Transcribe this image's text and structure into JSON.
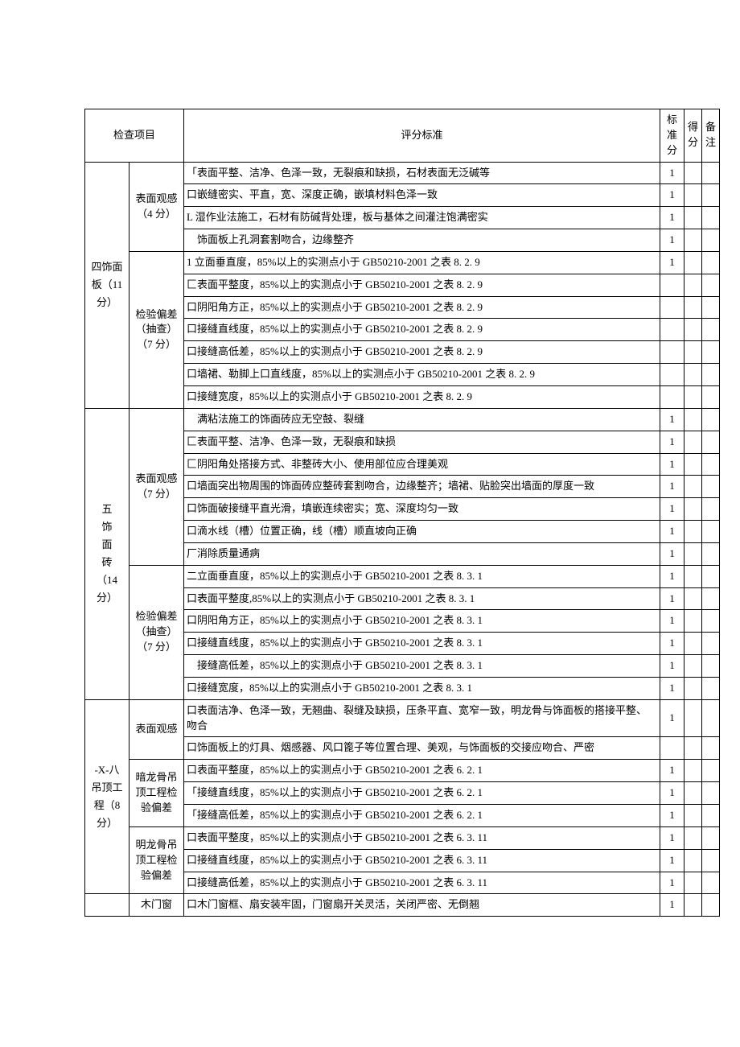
{
  "headers": {
    "item_col": "检查项目",
    "criteria": "评分标准",
    "std_score": "标准分",
    "got_score": "得分",
    "remark": "备注"
  },
  "sections": [
    {
      "category": "四饰面板（11 分）",
      "groups": [
        {
          "label": "表面观感（4 分）",
          "rows": [
            {
              "text": "「表面平整、洁净、色泽一致，无裂痕和缺损，石材表面无泛碱等",
              "score": "1"
            },
            {
              "text": "口嵌缝密实、平直，宽、深度正确，嵌填材料色泽一致",
              "score": "1"
            },
            {
              "text": "L 湿作业法施工，石材有防碱背处理，板与基体之间灌注饱满密实",
              "score": "1"
            },
            {
              "text": "　饰面板上孔洞套割吻合，边缘整齐",
              "score": "1"
            }
          ]
        },
        {
          "label": "检验偏差（抽查）（7 分）",
          "rows": [
            {
              "text": "1 立面垂直度，85%以上的实测点小于 GB50210-2001 之表 8. 2. 9",
              "score": "1"
            },
            {
              "text": "匚表面平整度，85%以上的实测点小于 GB50210-2001 之表 8. 2. 9",
              "score": ""
            },
            {
              "text": "口阴阳角方正，85%以上的实测点小于 GB50210-2001 之表 8. 2. 9",
              "score": ""
            },
            {
              "text": "口接缝直线度，85%以上的实测点小于 GB50210-2001 之表 8. 2. 9",
              "score": ""
            },
            {
              "text": "口接缝高低差，85%以上的实测点小于 GB50210-2001 之表 8. 2. 9",
              "score": ""
            },
            {
              "text": "口墙裙、勒脚上口直线度，85%以上的实测点小于 GB50210-2001 之表 8. 2. 9",
              "score": ""
            },
            {
              "text": "口接缝宽度，85%以上的实测点小于 GB50210-2001 之表 8. 2. 9",
              "score": ""
            }
          ]
        }
      ]
    },
    {
      "category": "五\n饰\n面\n砖\n（14\n分）",
      "groups": [
        {
          "label": "表面观感（7 分）",
          "rows": [
            {
              "text": "　满粘法施工的饰面砖应无空鼓、裂缝",
              "score": "1"
            },
            {
              "text": "匚表面平整、洁净、色泽一致，无裂痕和缺损",
              "score": "1"
            },
            {
              "text": "匚阴阳角处搭接方式、非整砖大小、使用部位应合理美观",
              "score": "1"
            },
            {
              "text": "口墙面突出物周围的饰面砖应整砖套割吻合，边缘整齐；墙裙、贴脸突出墙面的厚度一致",
              "score": "1"
            },
            {
              "text": "口饰面破接缝平直光滑，填嵌连续密实；宽、深度均匀一致",
              "score": "1"
            },
            {
              "text": "口滴水线（槽）位置正确，线（槽）顺直坡向正确",
              "score": "1"
            },
            {
              "text": "厂消除质量通病",
              "score": "1"
            }
          ]
        },
        {
          "label": "检验偏差（抽查）（7 分）",
          "rows": [
            {
              "text": "二立面垂直度，85%以上的实测点小于 GB50210-2001 之表 8. 3. 1",
              "score": "1"
            },
            {
              "text": "口表面平整度,85%以上的实测点小于 GB50210-2001 之表 8. 3. 1",
              "score": "1"
            },
            {
              "text": "口阴阳角方正，85%以上的实测点小于 GB50210-2001 之表 8. 3. 1",
              "score": "1"
            },
            {
              "text": "口接缝直线度，85%以上的实测点小于 GB50210-2001 之表 8. 3. 1",
              "score": "1"
            },
            {
              "text": "　接缝高低差，85%以上的实测点小于 GB50210-2001 之表 8. 3. 1",
              "score": "1"
            },
            {
              "text": "口接缝宽度，85%以上的实测点小于 GB50210-2001 之表 8. 3. 1",
              "score": "1"
            }
          ]
        }
      ]
    },
    {
      "category": "-X-八\n吊顶工程（8 分）",
      "groups": [
        {
          "label": "表面观感",
          "rows": [
            {
              "text": "口表面洁净、色泽一致，无翘曲、裂缝及缺损，压条平直、宽窄一致，明龙骨与饰面板的搭接平整、吻合",
              "score": "1"
            },
            {
              "text": "口饰面板上的灯具、烟感器、风口篦子等位置合理、美观，与饰面板的交接应吻合、严密",
              "score": ""
            }
          ]
        },
        {
          "label": "暗龙骨吊顶工程检验偏差",
          "rows": [
            {
              "text": "口表面平整度，85%以上的实测点小于 GB50210-2001 之表 6. 2. 1",
              "score": "1"
            },
            {
              "text": "「接缝直线度，85%以上的实测点小于 GB50210-2001 之表 6. 2. 1",
              "score": "1"
            },
            {
              "text": "「接缝高低差，85%以上的实测点小于 GB50210-2001 之表 6. 2. 1",
              "score": "1"
            }
          ]
        },
        {
          "label": "明龙骨吊顶工程检验偏差",
          "rows": [
            {
              "text": "口表面平整度，85%以上的实测点小于 GB50210-2001 之表 6. 3. 11",
              "score": "1"
            },
            {
              "text": "口接缝直线度，85%以上的实测点小于 GB50210-2001 之表 6. 3. 11",
              "score": "1"
            },
            {
              "text": "口接缝高低差，85%以上的实测点小于 GB50210-2001 之表 6. 3. 11",
              "score": "1"
            }
          ]
        }
      ]
    },
    {
      "category": "",
      "groups": [
        {
          "label": "木门窗",
          "rows": [
            {
              "text": "口木门窗框、扇安装牢固，门窗扇开关灵活，关闭严密、无倒翘",
              "score": "1"
            }
          ]
        }
      ]
    }
  ]
}
